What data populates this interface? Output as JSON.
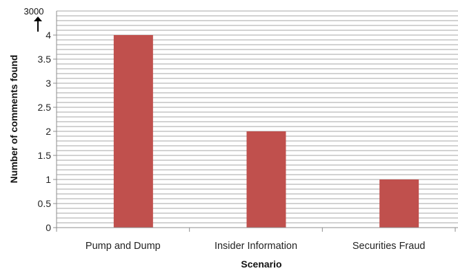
{
  "chart_data": {
    "type": "bar",
    "title": "",
    "xlabel": "Scenario",
    "ylabel": "Number of comments found",
    "categories": [
      "Pump and Dump",
      "Insider Information",
      "Securities Fraud"
    ],
    "values": [
      4,
      2,
      1
    ],
    "ylim": [
      0,
      4
    ],
    "yticks": [
      "0",
      "0.5",
      "1",
      "1.5",
      "2",
      "2.5",
      "3",
      "3.5",
      "4"
    ],
    "axis_break_label": "3000",
    "grid": true,
    "legend": "none",
    "colors": {
      "bar": "#c0504d",
      "grid": "#a6a6a6",
      "axis": "#8c8c8c"
    }
  }
}
